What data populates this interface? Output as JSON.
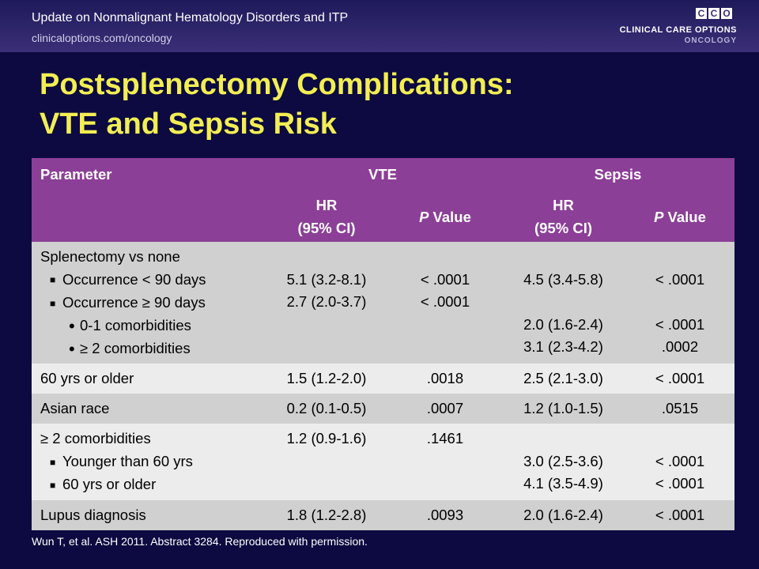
{
  "header": {
    "title": "Update on Nonmalignant Hematology Disorders and ITP",
    "url": "clinicaloptions.com/oncology",
    "logo_letters": [
      "C",
      "C",
      "O"
    ],
    "logo_line1": "CLINICAL CARE OPTIONS",
    "logo_line2": "ONCOLOGY"
  },
  "title": {
    "line1": "Postsplenectomy Complications:",
    "line2": "VTE and Sepsis Risk"
  },
  "table": {
    "group_headers": {
      "parameter": "Parameter",
      "vte": "VTE",
      "sepsis": "Sepsis"
    },
    "sub_headers": {
      "hr": "HR",
      "ci": "(95% CI)",
      "p_italic": "P",
      "p_rest": " Value"
    },
    "rows": [
      {
        "lines": [
          {
            "parameter": "Splenectomy vs none",
            "vte_hr": "",
            "vte_p": "",
            "sepsis_hr": "",
            "sepsis_p": ""
          },
          {
            "parameter": "Occurrence < 90 days",
            "vte_hr": "5.1 (3.2-8.1)",
            "vte_p": "< .0001",
            "sepsis_hr": "4.5 (3.4-5.8)",
            "sepsis_p": "< .0001"
          },
          {
            "parameter": "Occurrence ≥ 90 days",
            "vte_hr": "2.7 (2.0-3.7)",
            "vte_p": "< .0001",
            "sepsis_hr": "",
            "sepsis_p": ""
          },
          {
            "parameter": "0-1 comorbidities",
            "vte_hr": "",
            "vte_p": "",
            "sepsis_hr": "2.0 (1.6-2.4)",
            "sepsis_p": "< .0001"
          },
          {
            "parameter": "≥ 2 comorbidities",
            "vte_hr": "",
            "vte_p": "",
            "sepsis_hr": "3.1 (2.3-4.2)",
            "sepsis_p": ".0002"
          }
        ]
      },
      {
        "parameter": "60 yrs or older",
        "vte_hr": "1.5 (1.2-2.0)",
        "vte_p": ".0018",
        "sepsis_hr": "2.5 (2.1-3.0)",
        "sepsis_p": "< .0001"
      },
      {
        "parameter": "Asian race",
        "vte_hr": "0.2 (0.1-0.5)",
        "vte_p": ".0007",
        "sepsis_hr": "1.2 (1.0-1.5)",
        "sepsis_p": ".0515"
      },
      {
        "lines": [
          {
            "parameter": "≥ 2 comorbidities",
            "vte_hr": "1.2 (0.9-1.6)",
            "vte_p": ".1461",
            "sepsis_hr": "",
            "sepsis_p": ""
          },
          {
            "parameter": "Younger than 60 yrs",
            "vte_hr": "",
            "vte_p": "",
            "sepsis_hr": "3.0 (2.5-3.6)",
            "sepsis_p": "< .0001"
          },
          {
            "parameter": "60 yrs or older",
            "vte_hr": "",
            "vte_p": "",
            "sepsis_hr": "4.1 (3.5-4.9)",
            "sepsis_p": "< .0001"
          }
        ]
      },
      {
        "parameter": "Lupus diagnosis",
        "vte_hr": "1.8 (1.2-2.8)",
        "vte_p": ".0093",
        "sepsis_hr": "2.0 (1.6-2.4)",
        "sepsis_p": "< .0001"
      }
    ]
  },
  "footnote": "Wun T, et al. ASH 2011. Abstract 3284. Reproduced with permission.",
  "colors": {
    "background": "#0c0a40",
    "title": "#f2ee53",
    "table_header": "#8c3f97",
    "row_gray": "#d0d0d0",
    "row_light": "#ececec"
  }
}
